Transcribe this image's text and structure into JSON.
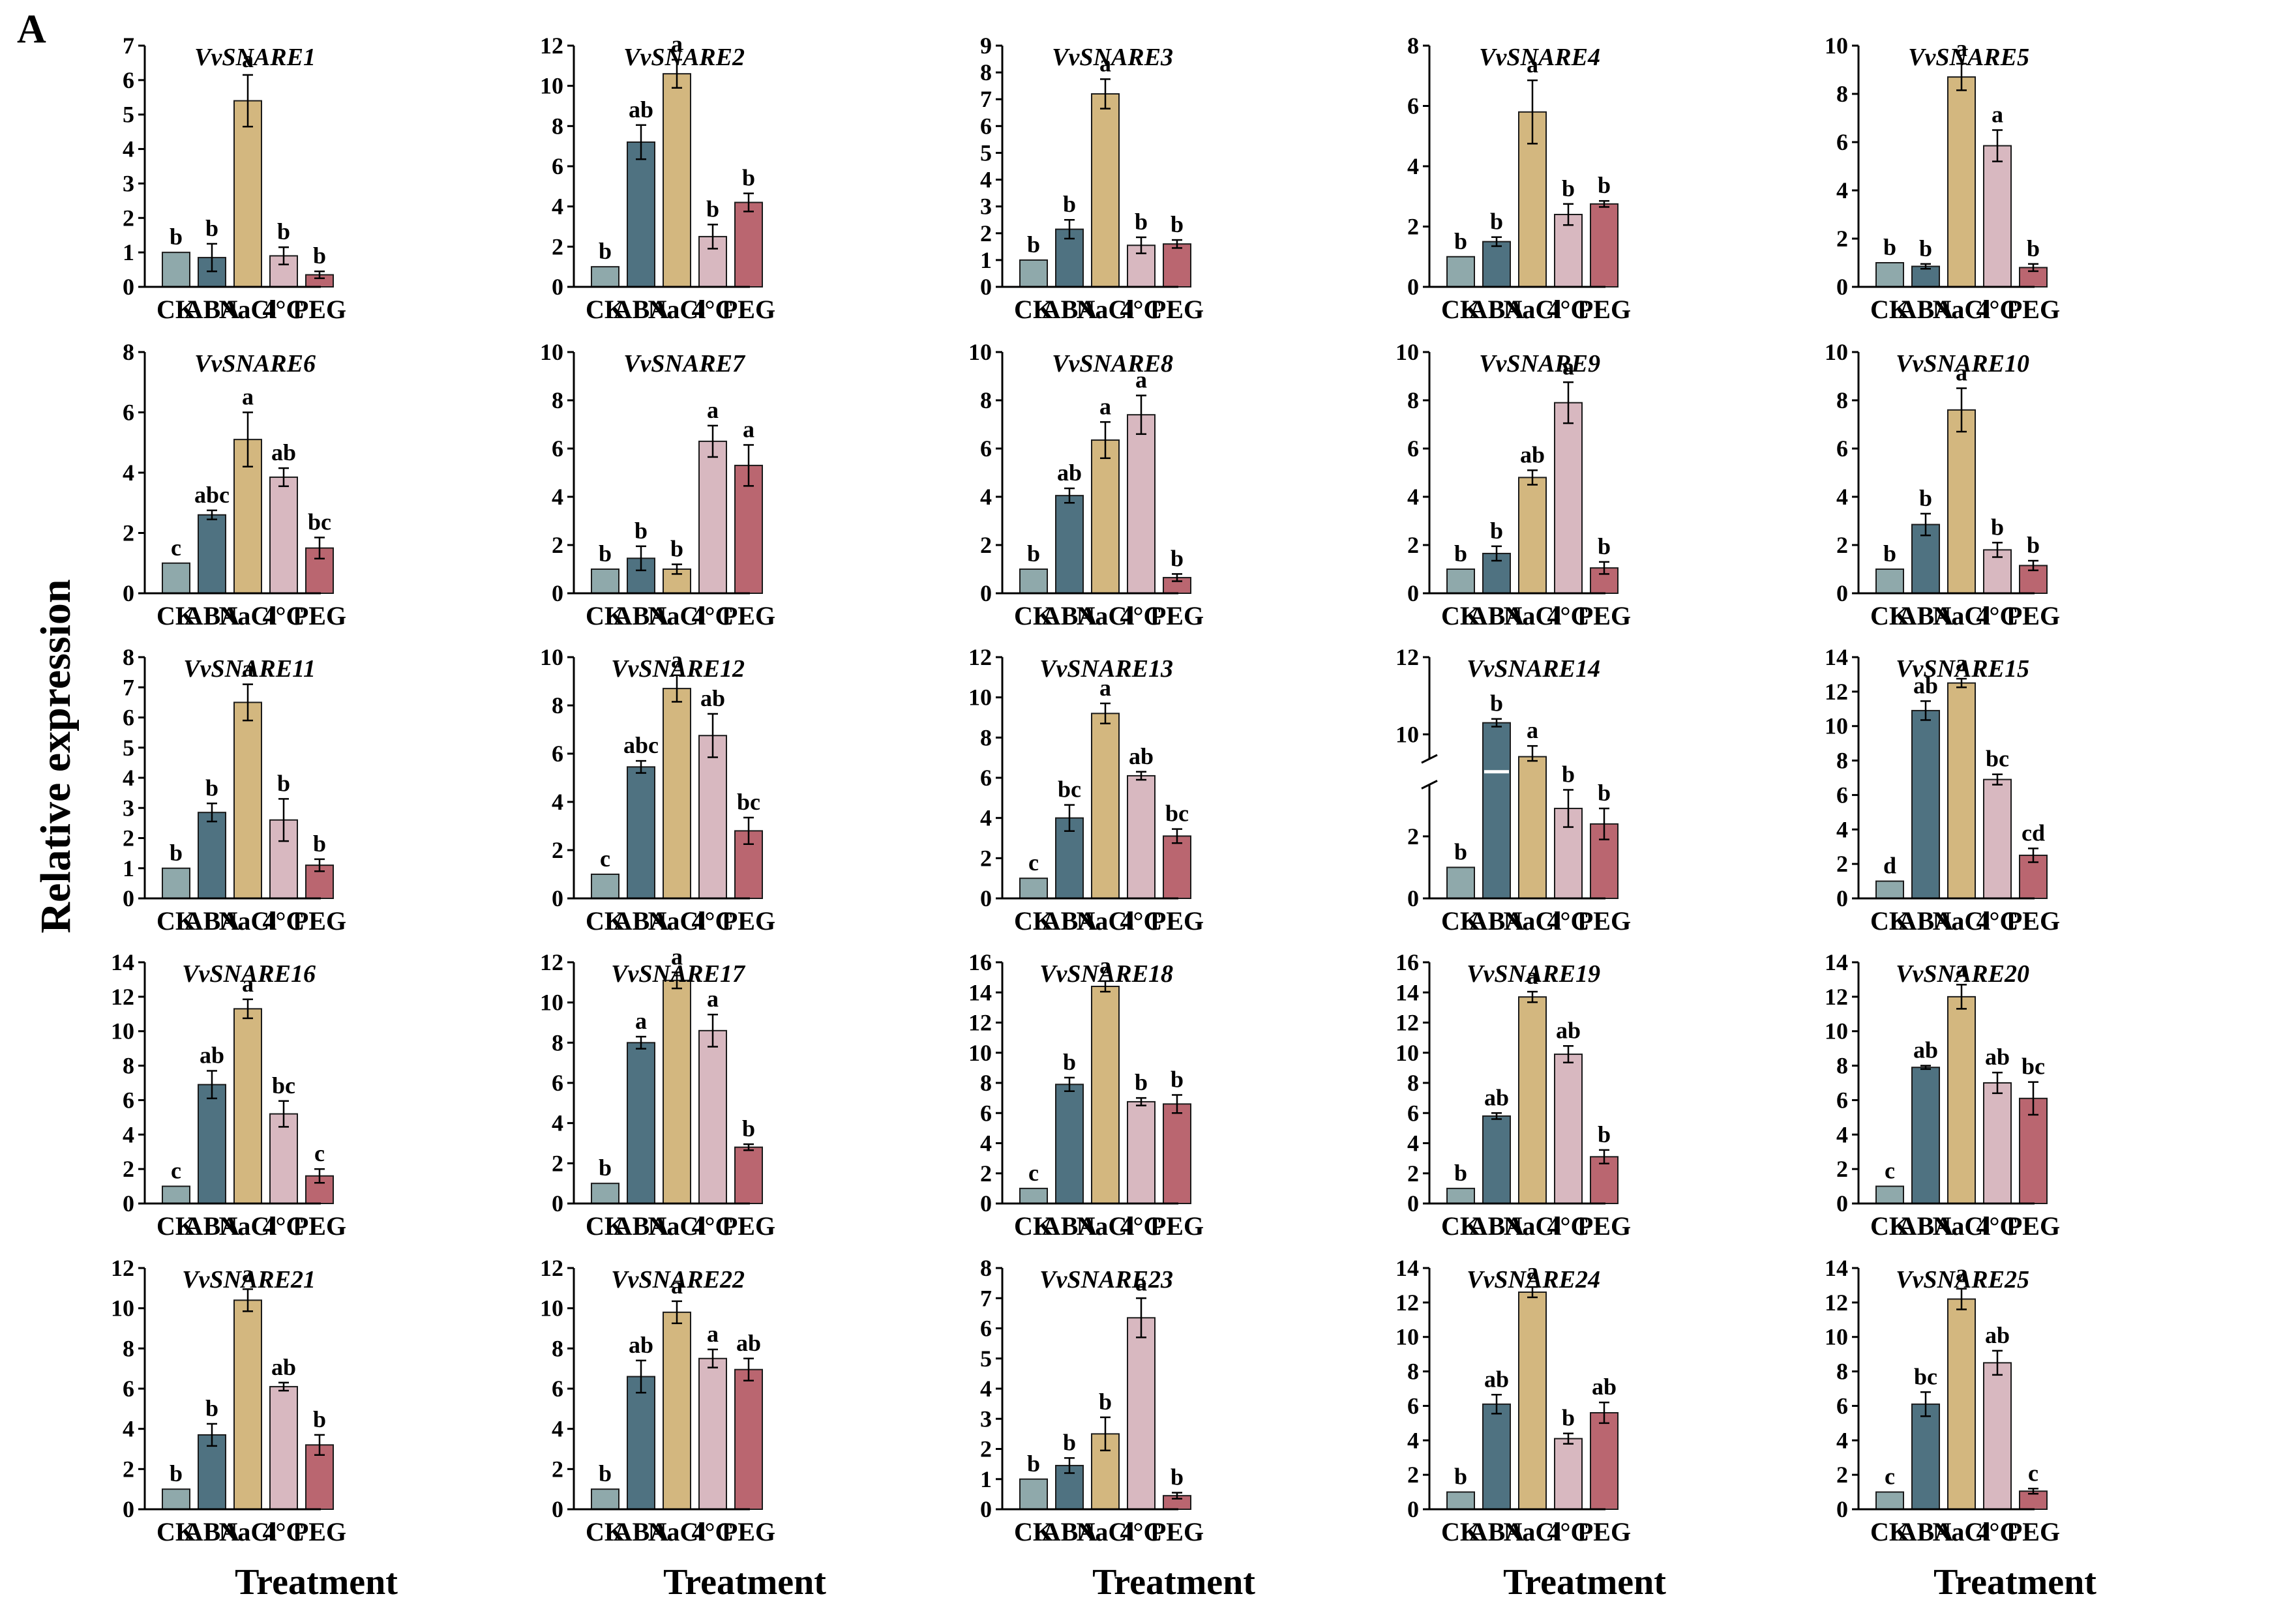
{
  "figure": {
    "panel_letter": "A",
    "y_title": "Relative expression",
    "x_title": "Treatment",
    "categories": [
      "CK",
      "ABA",
      "NaCl",
      "4°C",
      "PEG"
    ],
    "colors": [
      "#8fa9ab",
      "#4f7281",
      "#d3b77f",
      "#d8b8c0",
      "#ba6670"
    ]
  },
  "chart_data": [
    {
      "type": "bar",
      "title": "VvSNARE1",
      "ylim": [
        0,
        7
      ],
      "yticks": [
        0,
        1,
        2,
        3,
        4,
        5,
        6,
        7
      ],
      "values": [
        1.0,
        0.85,
        5.4,
        0.9,
        0.35
      ],
      "errors": [
        0,
        0.4,
        0.75,
        0.25,
        0.1
      ],
      "letters": [
        "b",
        "b",
        "a",
        "b",
        "b"
      ]
    },
    {
      "type": "bar",
      "title": "VvSNARE2",
      "ylim": [
        0,
        12
      ],
      "yticks": [
        0,
        2,
        4,
        6,
        8,
        10,
        12
      ],
      "values": [
        1.0,
        7.2,
        10.6,
        2.5,
        4.2
      ],
      "errors": [
        0,
        0.85,
        0.7,
        0.6,
        0.45
      ],
      "letters": [
        "b",
        "ab",
        "a",
        "b",
        "b"
      ]
    },
    {
      "type": "bar",
      "title": "VvSNARE3",
      "ylim": [
        0,
        9
      ],
      "yticks": [
        0,
        1,
        2,
        3,
        4,
        5,
        6,
        7,
        8,
        9
      ],
      "values": [
        1.0,
        2.15,
        7.2,
        1.55,
        1.6
      ],
      "errors": [
        0,
        0.35,
        0.55,
        0.3,
        0.15
      ],
      "letters": [
        "b",
        "b",
        "a",
        "b",
        "b"
      ]
    },
    {
      "type": "bar",
      "title": "VvSNARE4",
      "ylim": [
        0,
        8
      ],
      "yticks": [
        0,
        2,
        4,
        6,
        8
      ],
      "values": [
        1.0,
        1.5,
        5.8,
        2.4,
        2.75
      ],
      "errors": [
        0,
        0.15,
        1.05,
        0.35,
        0.1
      ],
      "letters": [
        "b",
        "b",
        "a",
        "b",
        "b"
      ]
    },
    {
      "type": "bar",
      "title": "VvSNARE5",
      "ylim": [
        0,
        10
      ],
      "yticks": [
        0,
        2,
        4,
        6,
        8,
        10
      ],
      "values": [
        1.0,
        0.85,
        8.7,
        5.85,
        0.8
      ],
      "errors": [
        0,
        0.1,
        0.55,
        0.65,
        0.15
      ],
      "letters": [
        "b",
        "b",
        "a",
        "a",
        "b"
      ]
    },
    {
      "type": "bar",
      "title": "VvSNARE6",
      "ylim": [
        0,
        8
      ],
      "yticks": [
        0,
        2,
        4,
        6,
        8
      ],
      "values": [
        1.0,
        2.6,
        5.1,
        3.85,
        1.5
      ],
      "errors": [
        0,
        0.15,
        0.9,
        0.3,
        0.35
      ],
      "letters": [
        "c",
        "abc",
        "a",
        "ab",
        "bc"
      ]
    },
    {
      "type": "bar",
      "title": "VvSNARE7",
      "ylim": [
        0,
        10
      ],
      "yticks": [
        0,
        2,
        4,
        6,
        8,
        10
      ],
      "values": [
        1.0,
        1.45,
        1.0,
        6.3,
        5.3
      ],
      "errors": [
        0,
        0.5,
        0.2,
        0.65,
        0.85
      ],
      "letters": [
        "b",
        "b",
        "b",
        "a",
        "a"
      ]
    },
    {
      "type": "bar",
      "title": "VvSNARE8",
      "ylim": [
        0,
        10
      ],
      "yticks": [
        0,
        2,
        4,
        6,
        8,
        10
      ],
      "values": [
        1.0,
        4.05,
        6.35,
        7.4,
        0.65
      ],
      "errors": [
        0,
        0.3,
        0.75,
        0.8,
        0.15
      ],
      "letters": [
        "b",
        "ab",
        "a",
        "a",
        "b"
      ]
    },
    {
      "type": "bar",
      "title": "VvSNARE9",
      "ylim": [
        0,
        10
      ],
      "yticks": [
        0,
        2,
        4,
        6,
        8,
        10
      ],
      "values": [
        1.0,
        1.65,
        4.8,
        7.9,
        1.05
      ],
      "errors": [
        0,
        0.3,
        0.3,
        0.85,
        0.25
      ],
      "letters": [
        "b",
        "b",
        "ab",
        "a",
        "b"
      ]
    },
    {
      "type": "bar",
      "title": "VvSNARE10",
      "ylim": [
        0,
        10
      ],
      "yticks": [
        0,
        2,
        4,
        6,
        8,
        10
      ],
      "values": [
        1.0,
        2.85,
        7.6,
        1.8,
        1.15
      ],
      "errors": [
        0,
        0.45,
        0.9,
        0.3,
        0.2
      ],
      "letters": [
        "b",
        "b",
        "a",
        "b",
        "b"
      ]
    },
    {
      "type": "bar",
      "title": "VvSNARE11",
      "ylim": [
        0,
        8
      ],
      "yticks": [
        0,
        1,
        2,
        3,
        4,
        5,
        6,
        7,
        8
      ],
      "values": [
        1.0,
        2.85,
        6.5,
        2.6,
        1.1
      ],
      "errors": [
        0,
        0.3,
        0.6,
        0.7,
        0.2
      ],
      "letters": [
        "b",
        "b",
        "a",
        "b",
        "b"
      ]
    },
    {
      "type": "bar",
      "title": "VvSNARE12",
      "ylim": [
        0,
        10
      ],
      "yticks": [
        0,
        2,
        4,
        6,
        8,
        10
      ],
      "values": [
        1.0,
        5.45,
        8.7,
        6.75,
        2.8
      ],
      "errors": [
        0,
        0.25,
        0.55,
        0.9,
        0.55
      ],
      "letters": [
        "c",
        "abc",
        "a",
        "ab",
        "bc"
      ]
    },
    {
      "type": "bar",
      "title": "VvSNARE13",
      "ylim": [
        0,
        12
      ],
      "yticks": [
        0,
        2,
        4,
        6,
        8,
        10,
        12
      ],
      "values": [
        1.0,
        4.0,
        9.2,
        6.1,
        3.1
      ],
      "errors": [
        0,
        0.65,
        0.5,
        0.2,
        0.35
      ],
      "letters": [
        "c",
        "bc",
        "a",
        "ab",
        "bc"
      ]
    },
    {
      "type": "bar",
      "title": "VvSNARE14",
      "ylim": [
        0,
        12
      ],
      "yticks": [
        0,
        2,
        10,
        12
      ],
      "values": [
        1.0,
        10.3,
        9.0,
        2.9,
        2.4
      ],
      "errors": [
        0,
        0.1,
        0.7,
        0.6,
        0.5
      ],
      "letters": [
        "b",
        "b",
        "a",
        "b",
        "b"
      ],
      "axis_break": [
        3.5,
        9.5
      ]
    },
    {
      "type": "bar",
      "title": "VvSNARE15",
      "ylim": [
        0,
        14
      ],
      "yticks": [
        0,
        2,
        4,
        6,
        8,
        10,
        12,
        14
      ],
      "values": [
        1.0,
        10.9,
        12.5,
        6.9,
        2.5
      ],
      "errors": [
        0,
        0.55,
        0.25,
        0.3,
        0.4
      ],
      "letters": [
        "d",
        "ab",
        "a",
        "bc",
        "cd"
      ]
    },
    {
      "type": "bar",
      "title": "VvSNARE16",
      "ylim": [
        0,
        14
      ],
      "yticks": [
        0,
        2,
        4,
        6,
        8,
        10,
        12,
        14
      ],
      "values": [
        1.0,
        6.9,
        11.3,
        5.2,
        1.6
      ],
      "errors": [
        0,
        0.8,
        0.55,
        0.75,
        0.4
      ],
      "letters": [
        "c",
        "ab",
        "a",
        "bc",
        "c"
      ]
    },
    {
      "type": "bar",
      "title": "VvSNARE17",
      "ylim": [
        0,
        12
      ],
      "yticks": [
        0,
        2,
        4,
        6,
        8,
        10,
        12
      ],
      "values": [
        1.0,
        8.0,
        11.1,
        8.6,
        2.8
      ],
      "errors": [
        0,
        0.3,
        0.4,
        0.8,
        0.15
      ],
      "letters": [
        "b",
        "a",
        "a",
        "a",
        "b"
      ]
    },
    {
      "type": "bar",
      "title": "VvSNARE18",
      "ylim": [
        0,
        16
      ],
      "yticks": [
        0,
        2,
        4,
        6,
        8,
        10,
        12,
        14,
        16
      ],
      "values": [
        1.0,
        7.9,
        14.4,
        6.75,
        6.6
      ],
      "errors": [
        0,
        0.45,
        0.35,
        0.25,
        0.6
      ],
      "letters": [
        "c",
        "b",
        "a",
        "b",
        "b"
      ]
    },
    {
      "type": "bar",
      "title": "VvSNARE19",
      "ylim": [
        0,
        16
      ],
      "yticks": [
        0,
        2,
        4,
        6,
        8,
        10,
        12,
        14,
        16
      ],
      "values": [
        1.0,
        5.8,
        13.7,
        9.9,
        3.1
      ],
      "errors": [
        0,
        0.2,
        0.35,
        0.55,
        0.45
      ],
      "letters": [
        "b",
        "ab",
        "a",
        "ab",
        "b"
      ]
    },
    {
      "type": "bar",
      "title": "VvSNARE20",
      "ylim": [
        0,
        14
      ],
      "yticks": [
        0,
        2,
        4,
        6,
        8,
        10,
        12,
        14
      ],
      "values": [
        1.0,
        7.9,
        12.0,
        7.0,
        6.1
      ],
      "errors": [
        0,
        0.1,
        0.7,
        0.6,
        0.95
      ],
      "letters": [
        "c",
        "ab",
        "a",
        "ab",
        "bc"
      ]
    },
    {
      "type": "bar",
      "title": "VvSNARE21",
      "ylim": [
        0,
        12
      ],
      "yticks": [
        0,
        2,
        4,
        6,
        8,
        10,
        12
      ],
      "values": [
        1.0,
        3.7,
        10.4,
        6.1,
        3.2
      ],
      "errors": [
        0,
        0.55,
        0.55,
        0.2,
        0.5
      ],
      "letters": [
        "b",
        "b",
        "a",
        "ab",
        "b"
      ]
    },
    {
      "type": "bar",
      "title": "VvSNARE22",
      "ylim": [
        0,
        12
      ],
      "yticks": [
        0,
        2,
        4,
        6,
        8,
        10,
        12
      ],
      "values": [
        1.0,
        6.6,
        9.8,
        7.5,
        6.95
      ],
      "errors": [
        0,
        0.8,
        0.55,
        0.45,
        0.55
      ],
      "letters": [
        "b",
        "ab",
        "a",
        "a",
        "ab"
      ]
    },
    {
      "type": "bar",
      "title": "VvSNARE23",
      "ylim": [
        0,
        8
      ],
      "yticks": [
        0,
        1,
        2,
        3,
        4,
        5,
        6,
        7,
        8
      ],
      "values": [
        1.0,
        1.45,
        2.5,
        6.35,
        0.45
      ],
      "errors": [
        0,
        0.25,
        0.55,
        0.65,
        0.1
      ],
      "letters": [
        "b",
        "b",
        "b",
        "a",
        "b"
      ]
    },
    {
      "type": "bar",
      "title": "VvSNARE24",
      "ylim": [
        0,
        14
      ],
      "yticks": [
        0,
        2,
        4,
        6,
        8,
        10,
        12,
        14
      ],
      "values": [
        1.0,
        6.1,
        12.6,
        4.1,
        5.6
      ],
      "errors": [
        0,
        0.55,
        0.3,
        0.3,
        0.6
      ],
      "letters": [
        "b",
        "ab",
        "a",
        "b",
        "ab"
      ]
    },
    {
      "type": "bar",
      "title": "VvSNARE25",
      "ylim": [
        0,
        14
      ],
      "yticks": [
        0,
        2,
        4,
        6,
        8,
        10,
        12,
        14
      ],
      "values": [
        1.0,
        6.1,
        12.2,
        8.5,
        1.05
      ],
      "errors": [
        0,
        0.7,
        0.6,
        0.7,
        0.15
      ],
      "letters": [
        "c",
        "bc",
        "a",
        "ab",
        "c"
      ]
    }
  ]
}
